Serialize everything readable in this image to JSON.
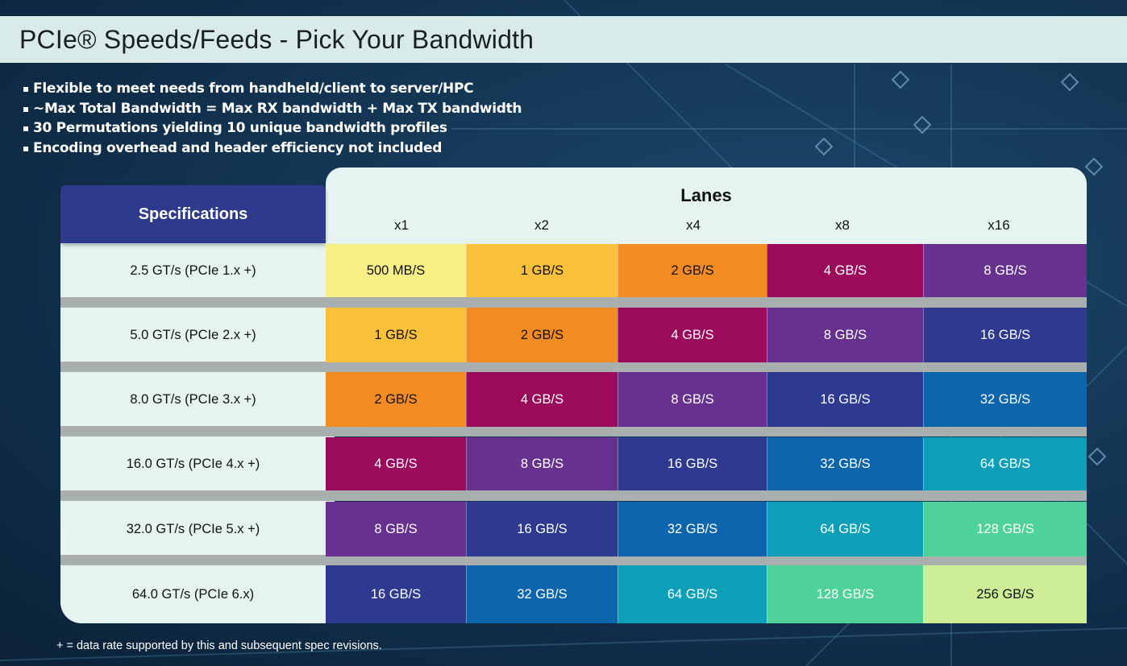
{
  "title": "PCIe® Speeds/Feeds - Pick Your Bandwidth",
  "bullets": [
    "Flexible to meet needs from handheld/client to server/HPC",
    "~Max Total Bandwidth = Max RX bandwidth + Max TX bandwidth",
    "30 Permutations yielding 10 unique bandwidth profiles",
    "Encoding overhead and header efficiency not included"
  ],
  "table": {
    "spec_header": "Specifications",
    "lanes_title": "Lanes",
    "lanes": [
      "x1",
      "x2",
      "x4",
      "x8",
      "x16"
    ],
    "rows": [
      {
        "spec": "2.5 GT/s (PCIe 1.x +)",
        "values": [
          "500 MB/S",
          "1 GB/S",
          "2 GB/S",
          "4 GB/S",
          "8 GB/S"
        ]
      },
      {
        "spec": "5.0 GT/s (PCIe 2.x +)",
        "values": [
          "1 GB/S",
          "2 GB/S",
          "4 GB/S",
          "8 GB/S",
          "16 GB/S"
        ]
      },
      {
        "spec": "8.0 GT/s (PCIe 3.x +)",
        "values": [
          "2 GB/S",
          "4 GB/S",
          "8 GB/S",
          "16 GB/S",
          "32 GB/S"
        ]
      },
      {
        "spec": "16.0 GT/s (PCIe 4.x +)",
        "values": [
          "4 GB/S",
          "8 GB/S",
          "16 GB/S",
          "32 GB/S",
          "64 GB/S"
        ]
      },
      {
        "spec": "32.0 GT/s (PCIe 5.x +)",
        "values": [
          "8 GB/S",
          "16 GB/S",
          "32 GB/S",
          "64 GB/S",
          "128 GB/S"
        ]
      },
      {
        "spec": "64.0 GT/s (PCIe 6.x)",
        "values": [
          "16 GB/S",
          "32 GB/S",
          "64 GB/S",
          "128 GB/S",
          "256 GB/S"
        ]
      }
    ],
    "bandwidth_colors": {
      "500 MB/S": "#f8ef86",
      "1 GB/S": "#f9c03a",
      "2 GB/S": "#f28c22",
      "4 GB/S": "#9c0a5c",
      "8 GB/S": "#66318f",
      "16 GB/S": "#2e3a8f",
      "32 GB/S": "#0d66ad",
      "64 GB/S": "#0d9fb7",
      "128 GB/S": "#4fd19a",
      "256 GB/S": "#cdee97"
    },
    "dark_text_values": [
      "500 MB/S",
      "1 GB/S",
      "2 GB/S",
      "256 GB/S"
    ]
  },
  "footnote": "+ = data rate supported by this and subsequent spec revisions."
}
